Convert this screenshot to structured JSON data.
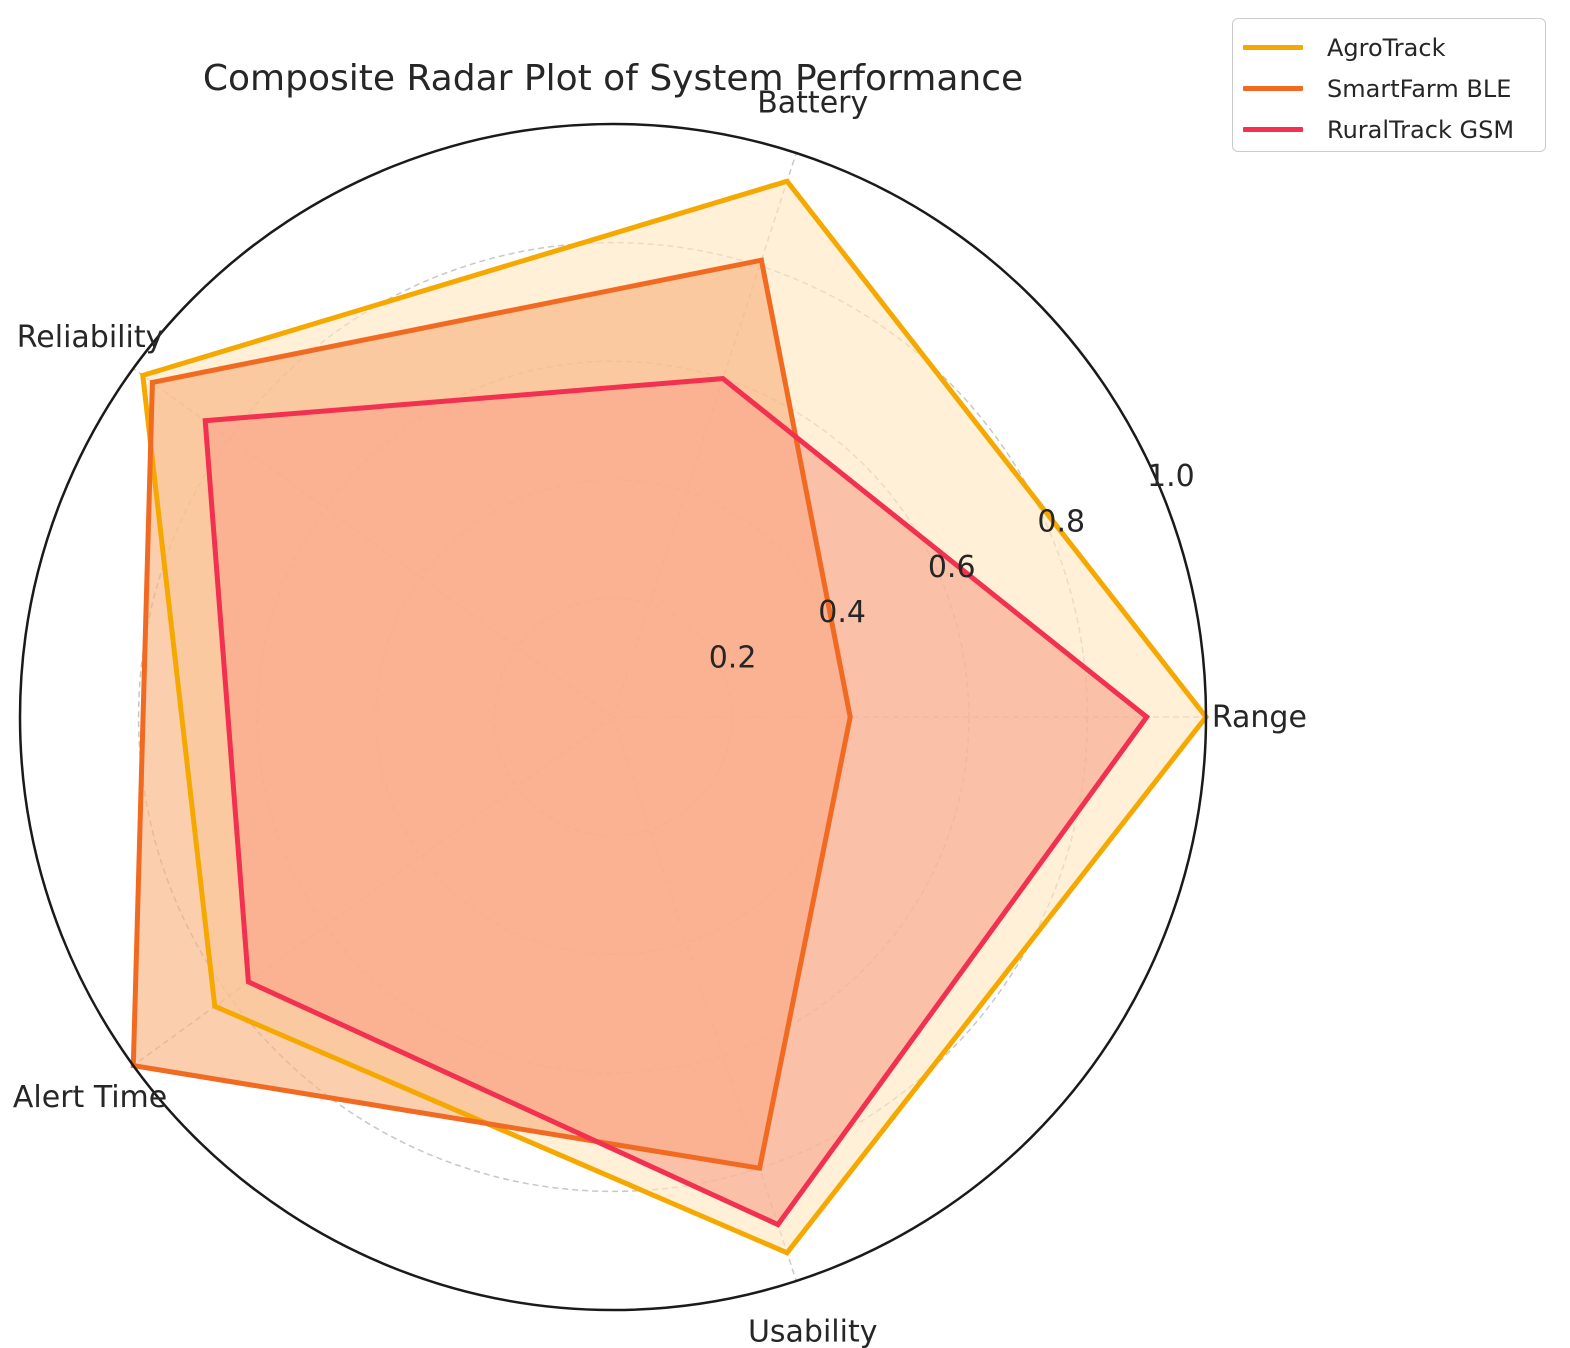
{
  "chart_data": {
    "type": "radar",
    "title": "Composite Radar Plot of System Performance",
    "axes": [
      "Range",
      "Battery",
      "Reliability",
      "Alert Time",
      "Usability"
    ],
    "rlim": [
      0,
      1.0
    ],
    "radial_ticks": [
      "0.2",
      "0.4",
      "0.6",
      "0.8",
      "1.0"
    ],
    "radial_tick_values": [
      0.2,
      0.4,
      0.6,
      0.8,
      1.0
    ],
    "grid": true,
    "legend_position": "top-right",
    "series": [
      {
        "name": "AgroTrack",
        "color": "#F5A800",
        "fill": "#FFE7BE",
        "values": [
          1.0,
          0.95,
          0.98,
          0.83,
          0.95
        ]
      },
      {
        "name": "SmartFarm BLE",
        "color": "#F06A22",
        "fill": "#F8B27D",
        "values": [
          0.4,
          0.81,
          0.96,
          1.0,
          0.8
        ]
      },
      {
        "name": "RuralTrack GSM",
        "color": "#F2304F",
        "fill": "#F9A58A",
        "values": [
          0.9,
          0.6,
          0.85,
          0.76,
          0.9
        ]
      }
    ]
  }
}
